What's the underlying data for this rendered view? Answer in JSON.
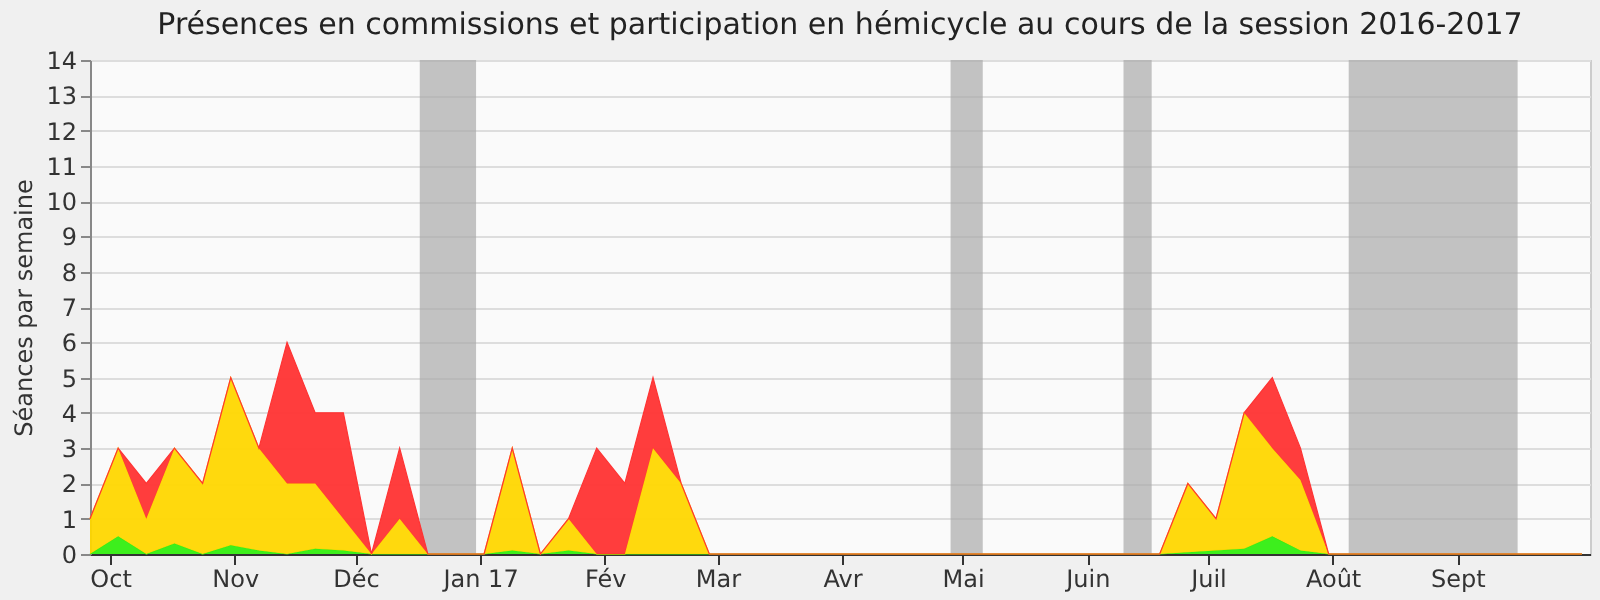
{
  "chart_data": {
    "type": "area",
    "title": "Présences en commissions et participation en hémicycle au cours de la session 2016-2017",
    "ylabel": "Séances par semaine",
    "stacked": true,
    "legend": false,
    "grid": "y",
    "x": [
      "2016-09-26",
      "2016-10-03",
      "2016-10-10",
      "2016-10-17",
      "2016-10-24",
      "2016-10-31",
      "2016-11-07",
      "2016-11-14",
      "2016-11-21",
      "2016-11-28",
      "2016-12-05",
      "2016-12-12",
      "2016-12-19",
      "2016-12-26",
      "2017-01-02",
      "2017-01-09",
      "2017-01-16",
      "2017-01-23",
      "2017-01-30",
      "2017-02-06",
      "2017-02-13",
      "2017-02-20",
      "2017-02-27",
      "2017-03-06",
      "2017-03-13",
      "2017-03-20",
      "2017-03-27",
      "2017-04-03",
      "2017-04-10",
      "2017-04-17",
      "2017-04-24",
      "2017-05-01",
      "2017-05-08",
      "2017-05-15",
      "2017-05-22",
      "2017-05-29",
      "2017-06-05",
      "2017-06-12",
      "2017-06-19",
      "2017-06-26",
      "2017-07-03",
      "2017-07-10",
      "2017-07-17",
      "2017-07-24",
      "2017-07-31",
      "2017-08-07",
      "2017-08-14",
      "2017-08-21",
      "2017-08-28",
      "2017-09-04",
      "2017-09-11",
      "2017-09-18",
      "2017-09-25",
      "2017-10-02"
    ],
    "series": [
      {
        "color": "#33ee11",
        "values": [
          0,
          0.5,
          0,
          0.3,
          0,
          0.25,
          0.1,
          0,
          0.15,
          0.1,
          0,
          0,
          0,
          0,
          0,
          0.1,
          0,
          0.1,
          0,
          0,
          0,
          0,
          0,
          0,
          0,
          0,
          0,
          0,
          0,
          0,
          0,
          0,
          0,
          0,
          0,
          0,
          0,
          0,
          0,
          0.05,
          0.1,
          0.15,
          0.5,
          0.1,
          0,
          0,
          0,
          0,
          0,
          0,
          0,
          0,
          0,
          0
        ]
      },
      {
        "color": "#ffd700",
        "values": [
          1,
          2.5,
          1,
          2.7,
          2,
          4.75,
          2.9,
          2,
          1.85,
          0.9,
          0,
          1,
          0,
          0,
          0,
          2.9,
          0,
          0.9,
          0,
          0,
          3,
          2,
          0,
          0,
          0,
          0,
          0,
          0,
          0,
          0,
          0,
          0,
          0,
          0,
          0,
          0,
          0,
          0,
          0,
          1.95,
          0.9,
          3.85,
          2.5,
          2,
          0,
          0,
          0,
          0,
          0,
          0,
          0,
          0,
          0,
          0
        ]
      },
      {
        "color": "#ff3333",
        "values": [
          0,
          0,
          1,
          0,
          0,
          0,
          0,
          4,
          2,
          3,
          0,
          2,
          0,
          0,
          0,
          0,
          0,
          0,
          3,
          2,
          2,
          0,
          0,
          0,
          0,
          0,
          0,
          0,
          0,
          0,
          0,
          0,
          0,
          0,
          0,
          0,
          0,
          0,
          0,
          0,
          0,
          0,
          2,
          0.9,
          0,
          0,
          0,
          0,
          0,
          0,
          0,
          0,
          0,
          0
        ]
      }
    ],
    "xlim": [
      "2016-09-26",
      "2017-10-04"
    ],
    "xticks": [
      {
        "value": "2016-10-01",
        "label": "Oct"
      },
      {
        "value": "2016-11-01",
        "label": "Nov"
      },
      {
        "value": "2016-12-01",
        "label": "Déc"
      },
      {
        "value": "2017-01-01",
        "label": "Jan 17"
      },
      {
        "value": "2017-02-01",
        "label": "Fév"
      },
      {
        "value": "2017-03-01",
        "label": "Mar"
      },
      {
        "value": "2017-04-01",
        "label": "Avr"
      },
      {
        "value": "2017-05-01",
        "label": "Mai"
      },
      {
        "value": "2017-06-01",
        "label": "Juin"
      },
      {
        "value": "2017-07-01",
        "label": "Juil"
      },
      {
        "value": "2017-08-01",
        "label": "Août"
      },
      {
        "value": "2017-09-01",
        "label": "Sept"
      }
    ],
    "ylim": [
      0,
      14
    ],
    "yticks": [
      0,
      1,
      2,
      3,
      4,
      5,
      6,
      7,
      8,
      9,
      10,
      11,
      12,
      13,
      14
    ],
    "bands": [
      {
        "axis": "x",
        "from": "2016-12-17",
        "to": "2016-12-31",
        "color": "#aaaaaa"
      },
      {
        "axis": "x",
        "from": "2017-04-28",
        "to": "2017-05-06",
        "color": "#aaaaaa"
      },
      {
        "axis": "x",
        "from": "2017-06-10",
        "to": "2017-06-17",
        "color": "#aaaaaa"
      },
      {
        "axis": "x",
        "from": "2017-08-05",
        "to": "2017-09-16",
        "color": "#aaaaaa"
      }
    ]
  }
}
